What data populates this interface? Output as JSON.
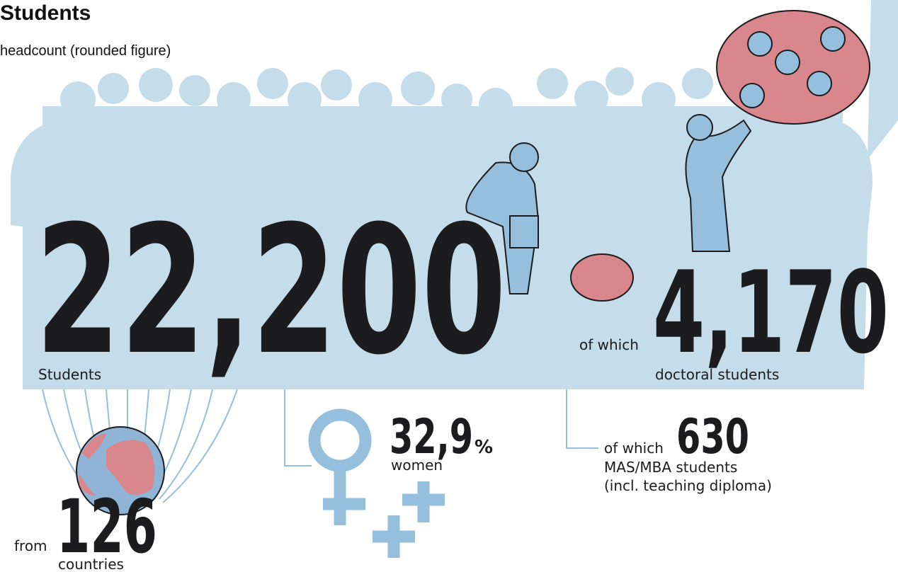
{
  "header": {
    "title": "Students",
    "subtitle": "headcount (rounded figure)"
  },
  "total": {
    "value": "22,200",
    "label": "Students"
  },
  "doctoral": {
    "prefix": "of which",
    "value": "4,170",
    "label": "doctoral students"
  },
  "countries": {
    "prefix": "from",
    "value": "126",
    "label": "countries"
  },
  "women": {
    "value": "32,9",
    "unit": "%",
    "label": "women"
  },
  "mas": {
    "prefix": "of which",
    "value": "630",
    "label": "MAS/MBA students",
    "note": "(incl. teaching diploma)"
  }
}
